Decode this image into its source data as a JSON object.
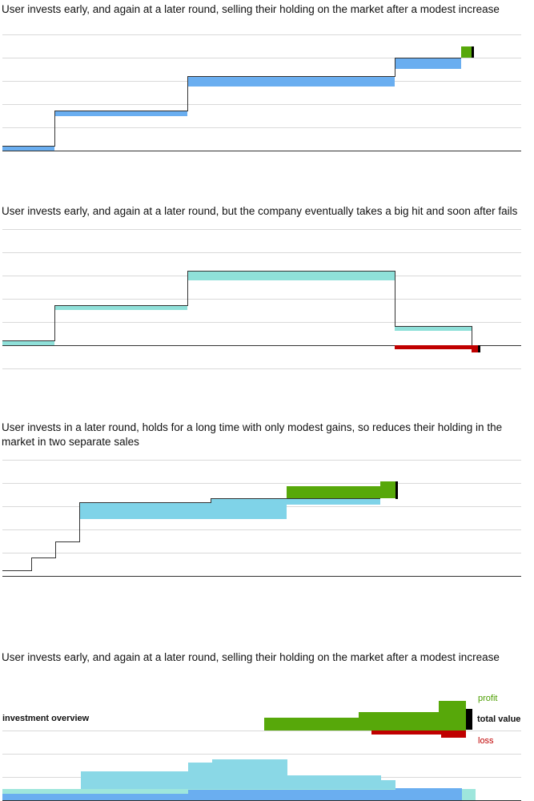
{
  "panels": [
    {
      "caption": "User invests early, and again at a later round, selling their holding on the market after a modest increase"
    },
    {
      "caption": "User invests early, and again at a later round, but the company eventually takes a big hit and soon after fails"
    },
    {
      "caption": "User invests in a later round, holds for a long time with only modest gains, so reduces their holding in the market in two separate sales"
    },
    {
      "caption": "User invests early, and again at a later round, selling their holding on the market after a modest increase",
      "overview_label": "investment overview",
      "profit_label": "profit",
      "total_value_label": "total value",
      "loss_label": "loss"
    }
  ],
  "colors": {
    "blue": "#6aaef0",
    "teal": "#8fe0d9",
    "cyan": "#7fd3e8",
    "green": "#57a80a",
    "red": "#c00000",
    "black": "#000000",
    "grid": "#d9d9d9",
    "axis": "#333333",
    "profit_text": "#4c9e00",
    "loss_text": "#c00000"
  }
}
